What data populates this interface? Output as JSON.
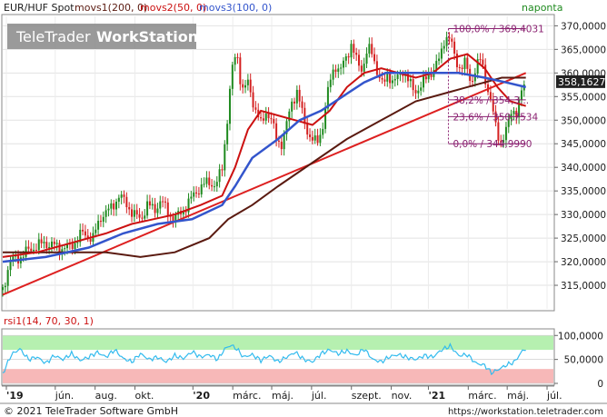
{
  "header": {
    "instrument": "EUR/HUF Spot",
    "movs1": "movs1(200, 0)",
    "movs2": "movs2(50, 0)",
    "movs3": "movs3(100, 0)",
    "period": "naponta"
  },
  "watermark": {
    "brand": "TeleTrader",
    "product": "WorkStation"
  },
  "footer": {
    "copyright": "© 2021 TeleTrader Software GmbH",
    "url": "https://workstation.teletrader.com"
  },
  "colors": {
    "up": "#1f8a1f",
    "down": "#d42020",
    "movs1": "#5a1a10",
    "movs2": "#cc1111",
    "movs3": "#3355cc",
    "trendline": "#dd2020",
    "fib": "#8a2070",
    "rsi_line": "#33bbee",
    "rsi_high": "#b6f0b0",
    "rsi_low": "#f7b8b8"
  },
  "chart_data": {
    "type": "line",
    "title": "EUR/HUF Spot",
    "main": {
      "ylim": [
        310,
        372
      ],
      "yticks": [
        315,
        320,
        325,
        330,
        335,
        340,
        345,
        350,
        355,
        360,
        365,
        370
      ],
      "ytick_labels": [
        "315,0000",
        "320,0000",
        "325,0000",
        "330,0000",
        "335,0000",
        "340,0000",
        "345,0000",
        "350,0000",
        "355,0000",
        "360,0000",
        "365,0000",
        "370,0000"
      ],
      "last_price": 358.1627,
      "last_price_label": "358,1627",
      "x_count": 640,
      "close": [
        [
          0,
          314
        ],
        [
          8,
          320
        ],
        [
          20,
          321
        ],
        [
          35,
          323
        ],
        [
          50,
          324
        ],
        [
          65,
          323
        ],
        [
          78,
          323
        ],
        [
          92,
          326
        ],
        [
          105,
          325
        ],
        [
          115,
          330
        ],
        [
          125,
          331
        ],
        [
          135,
          334
        ],
        [
          145,
          332
        ],
        [
          152,
          330
        ],
        [
          160,
          329
        ],
        [
          168,
          332
        ],
        [
          176,
          331
        ],
        [
          184,
          333
        ],
        [
          190,
          331
        ],
        [
          200,
          329
        ],
        [
          210,
          331
        ],
        [
          218,
          333
        ],
        [
          225,
          335
        ],
        [
          232,
          336
        ],
        [
          240,
          337
        ],
        [
          248,
          336
        ],
        [
          255,
          340
        ],
        [
          262,
          352
        ],
        [
          266,
          360
        ],
        [
          272,
          365
        ],
        [
          278,
          356
        ],
        [
          286,
          358
        ],
        [
          292,
          353
        ],
        [
          300,
          349
        ],
        [
          306,
          352
        ],
        [
          312,
          350
        ],
        [
          318,
          346
        ],
        [
          325,
          345
        ],
        [
          330,
          349
        ],
        [
          336,
          354
        ],
        [
          342,
          356
        ],
        [
          350,
          350
        ],
        [
          358,
          346
        ],
        [
          365,
          345
        ],
        [
          372,
          349
        ],
        [
          380,
          358
        ],
        [
          386,
          362
        ],
        [
          392,
          360
        ],
        [
          398,
          363
        ],
        [
          405,
          366
        ],
        [
          412,
          362
        ],
        [
          418,
          361
        ],
        [
          424,
          365
        ],
        [
          430,
          364
        ],
        [
          436,
          360
        ],
        [
          442,
          357
        ],
        [
          448,
          360
        ],
        [
          454,
          358
        ],
        [
          460,
          359
        ],
        [
          466,
          361
        ],
        [
          472,
          358
        ],
        [
          478,
          356
        ],
        [
          484,
          357
        ],
        [
          490,
          358
        ],
        [
          496,
          360
        ],
        [
          502,
          361
        ],
        [
          508,
          363
        ],
        [
          514,
          368
        ],
        [
          520,
          367
        ],
        [
          526,
          363
        ],
        [
          532,
          361
        ],
        [
          538,
          362
        ],
        [
          544,
          358
        ],
        [
          550,
          361
        ],
        [
          556,
          363
        ],
        [
          562,
          358
        ],
        [
          568,
          353
        ],
        [
          574,
          348
        ],
        [
          580,
          345
        ],
        [
          586,
          348
        ],
        [
          592,
          353
        ],
        [
          598,
          351
        ],
        [
          604,
          357
        ],
        [
          608,
          358.16
        ]
      ],
      "movs1": [
        [
          0,
          322
        ],
        [
          60,
          322
        ],
        [
          120,
          322
        ],
        [
          160,
          321
        ],
        [
          200,
          322
        ],
        [
          240,
          325
        ],
        [
          262,
          329
        ],
        [
          290,
          332
        ],
        [
          320,
          336
        ],
        [
          360,
          341
        ],
        [
          400,
          346
        ],
        [
          440,
          350
        ],
        [
          480,
          354
        ],
        [
          520,
          356
        ],
        [
          560,
          358
        ],
        [
          580,
          359
        ],
        [
          608,
          359
        ]
      ],
      "movs2": [
        [
          0,
          321
        ],
        [
          40,
          322
        ],
        [
          80,
          324
        ],
        [
          120,
          326
        ],
        [
          150,
          328
        ],
        [
          175,
          329
        ],
        [
          200,
          330
        ],
        [
          230,
          332
        ],
        [
          255,
          334
        ],
        [
          270,
          340
        ],
        [
          285,
          348
        ],
        [
          300,
          352
        ],
        [
          320,
          351
        ],
        [
          340,
          350
        ],
        [
          360,
          349
        ],
        [
          380,
          352
        ],
        [
          400,
          357
        ],
        [
          420,
          360
        ],
        [
          440,
          361
        ],
        [
          460,
          360
        ],
        [
          480,
          359
        ],
        [
          500,
          360
        ],
        [
          520,
          363
        ],
        [
          540,
          364
        ],
        [
          560,
          361
        ],
        [
          575,
          357
        ],
        [
          590,
          354
        ],
        [
          608,
          353
        ]
      ],
      "movs3": [
        [
          0,
          320
        ],
        [
          50,
          321
        ],
        [
          100,
          323
        ],
        [
          140,
          326
        ],
        [
          180,
          328
        ],
        [
          220,
          329
        ],
        [
          255,
          332
        ],
        [
          270,
          336
        ],
        [
          290,
          342
        ],
        [
          320,
          346
        ],
        [
          345,
          350
        ],
        [
          370,
          352
        ],
        [
          395,
          355
        ],
        [
          420,
          358
        ],
        [
          445,
          360
        ],
        [
          470,
          360
        ],
        [
          500,
          360
        ],
        [
          530,
          360
        ],
        [
          560,
          359
        ],
        [
          585,
          358
        ],
        [
          608,
          357
        ]
      ],
      "trendline": [
        [
          0,
          313
        ],
        [
          608,
          360
        ]
      ],
      "fib_levels": [
        {
          "pct": 100.0,
          "value": 369.4031,
          "label": "100,0% / 369,4031"
        },
        {
          "pct": 38.2,
          "value": 354.3,
          "label": "38,2% / 354,3..."
        },
        {
          "pct": 23.6,
          "value": 350.7534,
          "label": "23,6% / 350,7534"
        },
        {
          "pct": 0.0,
          "value": 344.999,
          "label": "0,0% / 344,9990"
        }
      ]
    },
    "rsi": {
      "label": "rsi1(14, 70, 30, 1)",
      "ylim": [
        0,
        110
      ],
      "yticks": [
        0,
        50,
        100
      ],
      "ytick_labels": [
        "0",
        "50,0000",
        "100,0000"
      ],
      "band_high": [
        70,
        100
      ],
      "band_low": [
        0,
        30
      ],
      "values": [
        [
          0,
          20
        ],
        [
          10,
          60
        ],
        [
          20,
          72
        ],
        [
          30,
          50
        ],
        [
          40,
          55
        ],
        [
          50,
          42
        ],
        [
          60,
          58
        ],
        [
          70,
          50
        ],
        [
          80,
          62
        ],
        [
          90,
          48
        ],
        [
          100,
          55
        ],
        [
          110,
          65
        ],
        [
          120,
          55
        ],
        [
          130,
          70
        ],
        [
          140,
          52
        ],
        [
          150,
          45
        ],
        [
          160,
          62
        ],
        [
          170,
          50
        ],
        [
          180,
          55
        ],
        [
          190,
          45
        ],
        [
          200,
          58
        ],
        [
          210,
          52
        ],
        [
          220,
          66
        ],
        [
          230,
          55
        ],
        [
          240,
          60
        ],
        [
          250,
          50
        ],
        [
          258,
          72
        ],
        [
          265,
          80
        ],
        [
          272,
          72
        ],
        [
          280,
          55
        ],
        [
          290,
          60
        ],
        [
          300,
          48
        ],
        [
          310,
          58
        ],
        [
          320,
          45
        ],
        [
          330,
          55
        ],
        [
          340,
          65
        ],
        [
          350,
          50
        ],
        [
          360,
          45
        ],
        [
          370,
          62
        ],
        [
          380,
          70
        ],
        [
          390,
          62
        ],
        [
          400,
          68
        ],
        [
          410,
          58
        ],
        [
          420,
          72
        ],
        [
          430,
          50
        ],
        [
          440,
          45
        ],
        [
          450,
          56
        ],
        [
          460,
          60
        ],
        [
          470,
          54
        ],
        [
          480,
          50
        ],
        [
          490,
          58
        ],
        [
          500,
          55
        ],
        [
          510,
          70
        ],
        [
          520,
          78
        ],
        [
          530,
          58
        ],
        [
          540,
          60
        ],
        [
          550,
          42
        ],
        [
          560,
          38
        ],
        [
          568,
          22
        ],
        [
          575,
          28
        ],
        [
          585,
          38
        ],
        [
          595,
          45
        ],
        [
          604,
          68
        ],
        [
          608,
          72
        ]
      ]
    },
    "x_axis": {
      "ticks": [
        {
          "x": 4,
          "label": "'19",
          "bold": true
        },
        {
          "x": 58,
          "label": "jún."
        },
        {
          "x": 102,
          "label": "aug."
        },
        {
          "x": 146,
          "label": "okt."
        },
        {
          "x": 210,
          "label": "'20",
          "bold": true
        },
        {
          "x": 254,
          "label": "márc."
        },
        {
          "x": 297,
          "label": "máj."
        },
        {
          "x": 341,
          "label": "júl."
        },
        {
          "x": 385,
          "label": "szept."
        },
        {
          "x": 429,
          "label": "nov."
        },
        {
          "x": 470,
          "label": "'21",
          "bold": true
        },
        {
          "x": 514,
          "label": "márc."
        },
        {
          "x": 557,
          "label": "máj."
        },
        {
          "x": 601,
          "label": "júl."
        }
      ]
    }
  }
}
